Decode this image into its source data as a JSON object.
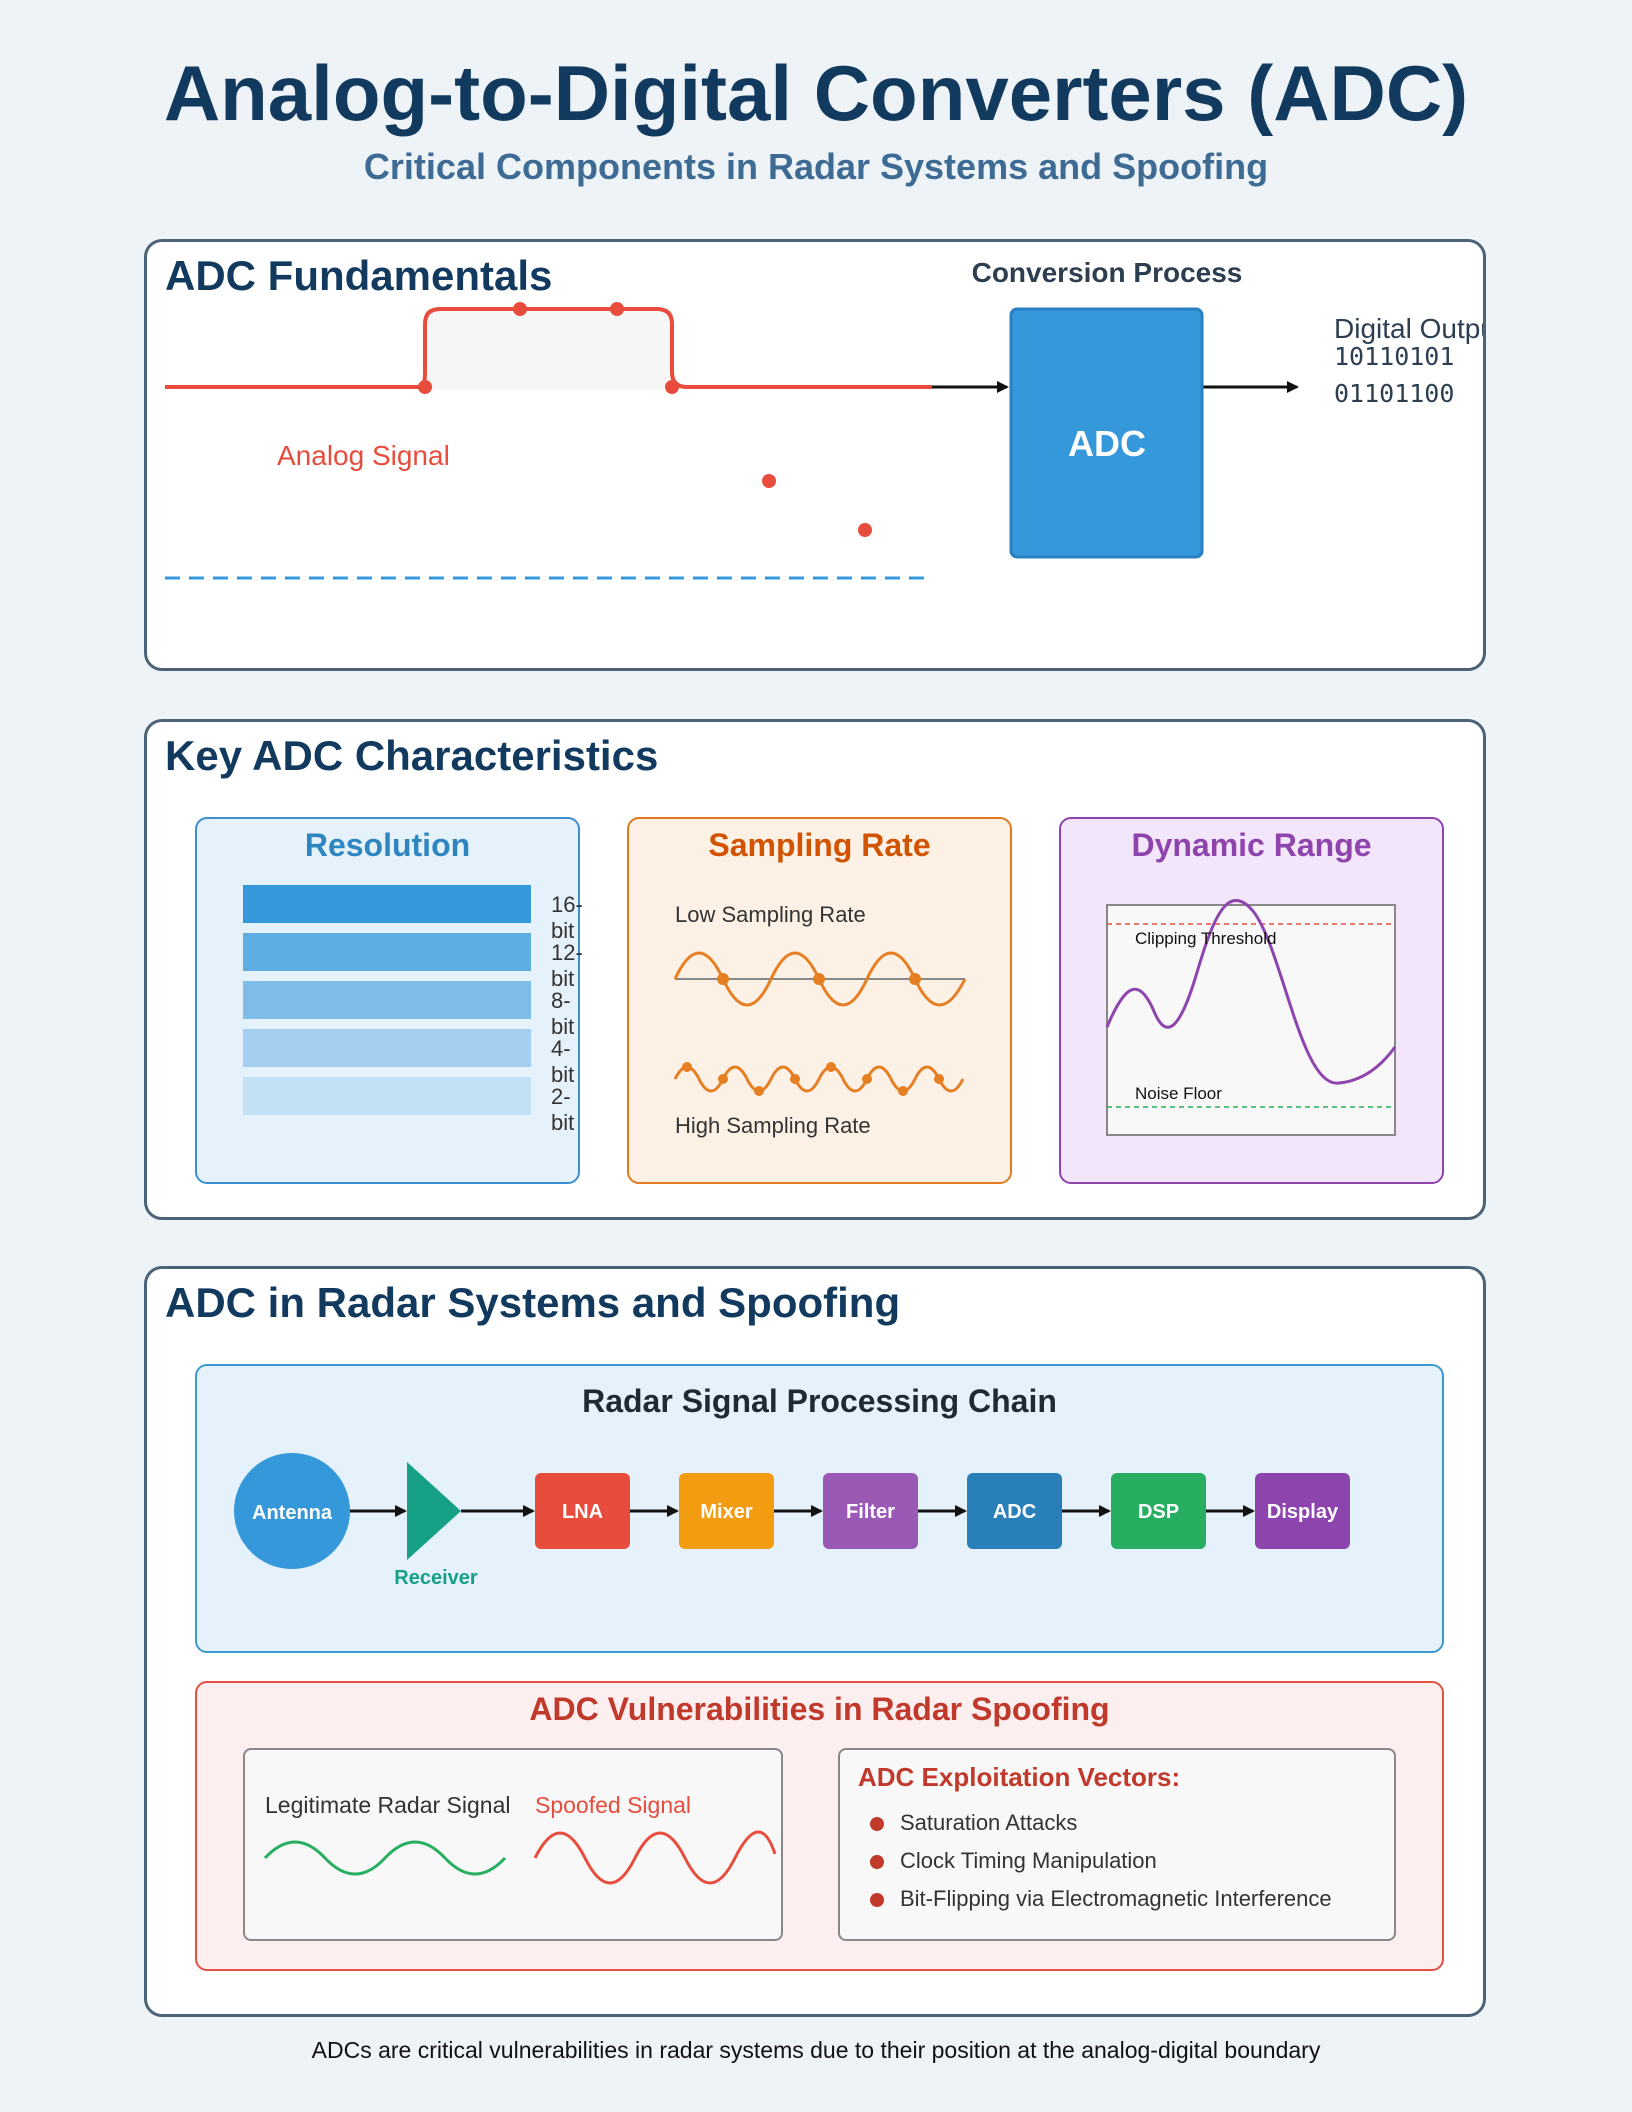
{
  "header": {
    "title": "Analog-to-Digital Converters (ADC)",
    "subtitle": "Critical Components in Radar Systems and Spoofing"
  },
  "fundamentals": {
    "title": "ADC Fundamentals",
    "process_label": "Conversion Process",
    "analog_label": "Analog Signal",
    "adc_label": "ADC",
    "digital_output_label": "Digital Output",
    "digital_lines": [
      "10110101",
      "01101100"
    ]
  },
  "characteristics": {
    "title": "Key ADC Characteristics",
    "resolution": {
      "title": "Resolution",
      "levels": [
        "16-bit",
        "12-bit",
        "8-bit",
        "4-bit",
        "2-bit"
      ]
    },
    "sampling": {
      "title": "Sampling Rate",
      "low_label": "Low Sampling Rate",
      "high_label": "High Sampling Rate"
    },
    "dynamic_range": {
      "title": "Dynamic Range",
      "clip_label": "Clipping Threshold",
      "noise_label": "Noise Floor"
    }
  },
  "radar": {
    "title": "ADC in Radar Systems and Spoofing",
    "chain": {
      "title": "Radar Signal Processing Chain",
      "antenna": "Antenna",
      "receiver": "Receiver",
      "blocks": [
        "LNA",
        "Mixer",
        "Filter",
        "ADC",
        "DSP",
        "Display"
      ],
      "block_colors": [
        "#e74c3c",
        "#f39c12",
        "#9b59b6",
        "#2980b9",
        "#27ae60",
        "#8e44ad"
      ]
    },
    "vulnerabilities": {
      "title": "ADC Vulnerabilities in Radar Spoofing",
      "legit_label": "Legitimate Radar Signal",
      "spoof_label": "Spoofed Signal",
      "vectors_title": "ADC Exploitation Vectors:",
      "vectors": [
        "Saturation Attacks",
        "Clock Timing Manipulation",
        "Bit-Flipping via Electromagnetic Interference"
      ]
    }
  },
  "footer": {
    "note": "ADCs are critical vulnerabilities in radar systems due to their position at the analog-digital boundary"
  }
}
